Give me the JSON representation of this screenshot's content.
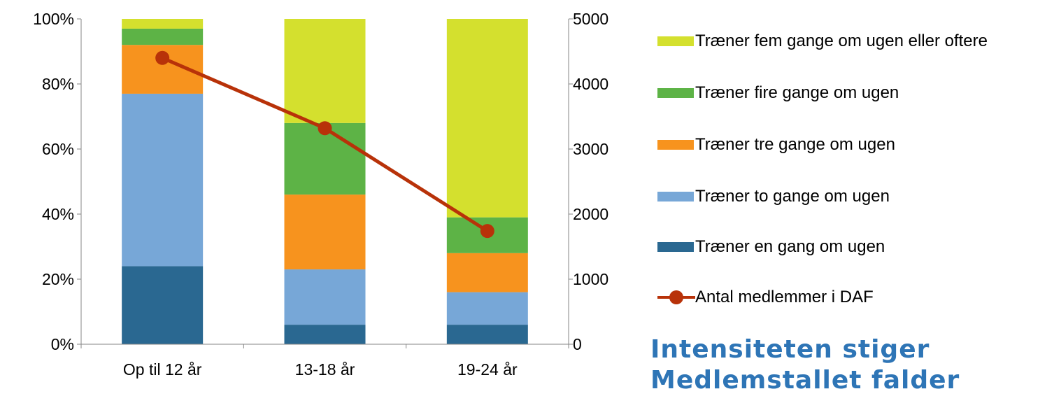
{
  "chart_data": {
    "type": "bar",
    "stacked": true,
    "categories": [
      "Op til 12 år",
      "13-18 år",
      "19-24 år"
    ],
    "y_left_ticks": [
      "0%",
      "20%",
      "40%",
      "60%",
      "80%",
      "100%"
    ],
    "y_left_range": [
      0,
      100
    ],
    "y_right_ticks": [
      "0",
      "1000",
      "2000",
      "3000",
      "4000",
      "5000"
    ],
    "y_right_range": [
      0,
      5000
    ],
    "grid": false,
    "legend_position": "right",
    "series": [
      {
        "name": "Træner en gang om ugen",
        "color": "#2a6891",
        "values": [
          24,
          6,
          6
        ]
      },
      {
        "name": "Træner to gange om ugen",
        "color": "#77a7d7",
        "values": [
          53,
          17,
          10
        ]
      },
      {
        "name": "Træner tre gange om ugen",
        "color": "#f7931e",
        "values": [
          15,
          23,
          12
        ]
      },
      {
        "name": "Træner fire gange om ugen",
        "color": "#5db346",
        "values": [
          5,
          22,
          11
        ]
      },
      {
        "name": "Træner fem gange om ugen eller oftere",
        "color": "#d4e02e",
        "values": [
          3,
          32,
          61
        ]
      }
    ],
    "line_series": {
      "name": "Antal medlemmer i DAF",
      "color": "#b83209",
      "axis": "right",
      "values": [
        4400,
        3320,
        1740
      ]
    }
  },
  "legend_items": [
    {
      "label": "Træner fem gange om ugen eller oftere",
      "color": "#d4e02e"
    },
    {
      "label": "Træner fire gange om ugen",
      "color": "#5db346"
    },
    {
      "label": "Træner tre gange om ugen",
      "color": "#f7931e"
    },
    {
      "label": "Træner to gange om ugen",
      "color": "#77a7d7"
    },
    {
      "label": "Træner en gang om ugen",
      "color": "#2a6891"
    }
  ],
  "line_legend": {
    "label": "Antal medlemmer i DAF",
    "color": "#b83209"
  },
  "headline": {
    "line1": "Intensiteten stiger",
    "line2": "Medlemstallet falder"
  }
}
